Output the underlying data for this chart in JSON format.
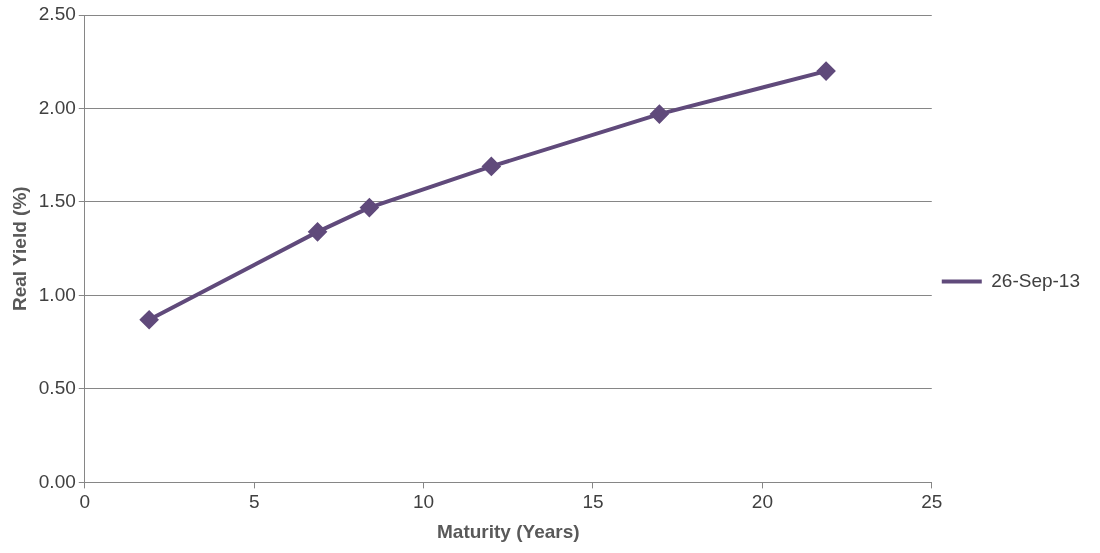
{
  "chart_data": {
    "type": "line",
    "xlabel": "Maturity (Years)",
    "ylabel": "Real Yield (%)",
    "x": [
      1.9,
      6.87,
      8.4,
      12.0,
      16.96,
      21.88
    ],
    "series": [
      {
        "name": "26-Sep-13",
        "color": "#604a7b",
        "values": [
          0.87,
          1.34,
          1.47,
          1.69,
          1.97,
          2.2
        ]
      }
    ],
    "xlim": [
      0,
      25
    ],
    "xticks": [
      0,
      5,
      10,
      15,
      20,
      25
    ],
    "ylim": [
      0,
      2.5
    ],
    "yticks": [
      {
        "value": 0,
        "label": "0.00"
      },
      {
        "value": 0.5,
        "label": "0.50"
      },
      {
        "value": 1,
        "label": "1.00"
      },
      {
        "value": 1.5,
        "label": "1.50"
      },
      {
        "value": 2,
        "label": "2.00"
      },
      {
        "value": 2.5,
        "label": "2.50"
      }
    ],
    "grid": "y",
    "legend": "right",
    "marker": "diamond",
    "line_style": "solid"
  }
}
